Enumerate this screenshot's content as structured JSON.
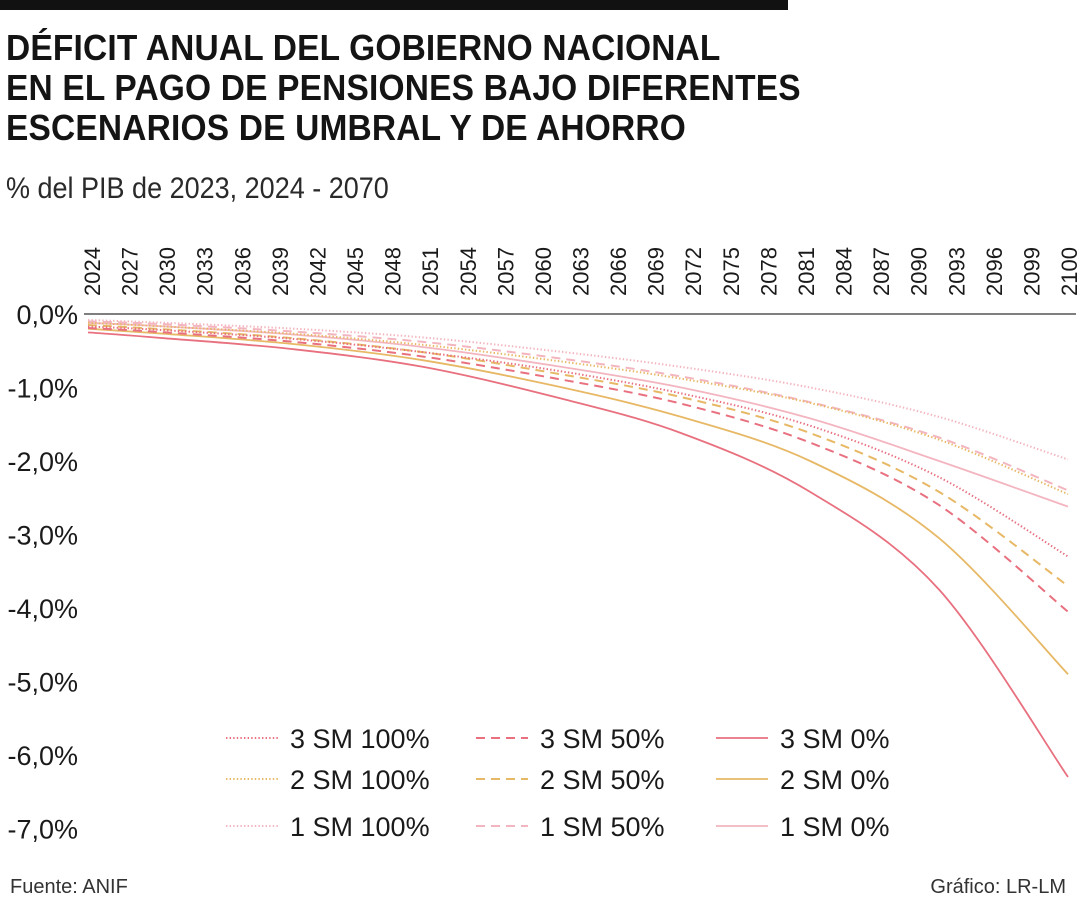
{
  "header": {
    "title_lines": [
      "DÉFICIT ANUAL DEL GOBIERNO NACIONAL",
      "EN EL PAGO DE PENSIONES BAJO DIFERENTES",
      "ESCENARIOS DE UMBRAL Y DE AHORRO"
    ],
    "subtitle": "% del PIB de 2023, 2024 - 2070"
  },
  "footer": {
    "source": "Fuente: ANIF",
    "credit": "Gráfico: LR-LM"
  },
  "colors": {
    "red": "#e8707f",
    "yellow": "#e7b865",
    "pink": "#f3b5bf",
    "axis": "#333333",
    "text": "#1a1a1a"
  },
  "chart_data": {
    "type": "line",
    "title": "DÉFICIT ANUAL DEL GOBIERNO NACIONAL EN EL PAGO DE PENSIONES BAJO DIFERENTES ESCENARIOS DE UMBRAL Y DE AHORRO",
    "subtitle": "% del PIB de 2023, 2024 - 2070",
    "xlabel": "",
    "ylabel": "",
    "x_range": [
      2024,
      2100
    ],
    "x_ticks": [
      "2024",
      "2027",
      "2030",
      "2033",
      "2036",
      "2039",
      "2042",
      "2045",
      "2048",
      "2051",
      "2054",
      "2057",
      "2060",
      "2063",
      "2066",
      "2069",
      "2072",
      "2075",
      "2078",
      "2081",
      "2084",
      "2087",
      "2090",
      "2093",
      "2096",
      "2099",
      "2100"
    ],
    "y_ticks": [
      "0,0%",
      "-1,0%",
      "-2,0%",
      "-3,0%",
      "-4,0%",
      "-5,0%",
      "-6,0%",
      "-7,0%"
    ],
    "y_tick_values": [
      0,
      -1,
      -2,
      -3,
      -4,
      -5,
      -6,
      -7
    ],
    "ylim": [
      -7,
      0
    ],
    "legend": {
      "placement": "bottom-center",
      "columns": 3
    },
    "x": [
      2024,
      2030,
      2040,
      2050,
      2060,
      2070,
      2080,
      2090,
      2100
    ],
    "series": [
      {
        "name": "3 SM 100%",
        "color": "red",
        "style": "dotted",
        "values": [
          -0.17,
          -0.22,
          -0.34,
          -0.52,
          -0.76,
          -1.08,
          -1.52,
          -2.22,
          -3.3
        ]
      },
      {
        "name": "3 SM 50%",
        "color": "red",
        "style": "dashed",
        "values": [
          -0.19,
          -0.25,
          -0.38,
          -0.58,
          -0.87,
          -1.22,
          -1.75,
          -2.6,
          -4.05
        ]
      },
      {
        "name": "3 SM 0%",
        "color": "red",
        "style": "solid",
        "values": [
          -0.25,
          -0.33,
          -0.48,
          -0.72,
          -1.12,
          -1.62,
          -2.42,
          -3.75,
          -6.3
        ]
      },
      {
        "name": "2 SM 100%",
        "color": "yellow",
        "style": "dotted",
        "values": [
          -0.12,
          -0.17,
          -0.27,
          -0.42,
          -0.63,
          -0.88,
          -1.21,
          -1.71,
          -2.45
        ]
      },
      {
        "name": "2 SM 50%",
        "color": "yellow",
        "style": "dashed",
        "values": [
          -0.15,
          -0.21,
          -0.33,
          -0.52,
          -0.8,
          -1.13,
          -1.62,
          -2.42,
          -3.7
        ]
      },
      {
        "name": "2 SM 0%",
        "color": "yellow",
        "style": "solid",
        "values": [
          -0.2,
          -0.27,
          -0.41,
          -0.63,
          -0.97,
          -1.4,
          -2.0,
          -3.05,
          -4.9
        ]
      },
      {
        "name": "1 SM 100%",
        "color": "pink",
        "style": "dotted",
        "values": [
          -0.08,
          -0.12,
          -0.2,
          -0.32,
          -0.5,
          -0.72,
          -1.0,
          -1.4,
          -1.98
        ]
      },
      {
        "name": "1 SM 50%",
        "color": "pink",
        "style": "dashed",
        "values": [
          -0.1,
          -0.14,
          -0.24,
          -0.38,
          -0.59,
          -0.85,
          -1.2,
          -1.68,
          -2.4
        ]
      },
      {
        "name": "1 SM 0%",
        "color": "pink",
        "style": "solid",
        "values": [
          -0.12,
          -0.17,
          -0.28,
          -0.45,
          -0.7,
          -1.0,
          -1.42,
          -2.0,
          -2.62
        ]
      }
    ]
  }
}
